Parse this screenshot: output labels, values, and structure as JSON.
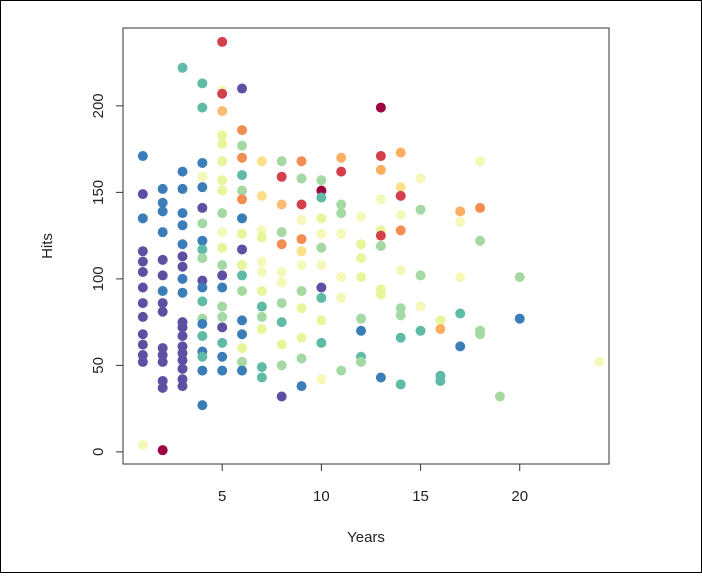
{
  "chart_data": {
    "type": "scatter",
    "title": "",
    "xlabel": "Years",
    "ylabel": "Hits",
    "xlim": [
      0,
      24.5
    ],
    "ylim": [
      -7,
      245
    ],
    "x_ticks": [
      "5",
      "10",
      "15",
      "20"
    ],
    "y_ticks": [
      "0",
      "50",
      "100",
      "150",
      "200"
    ],
    "grid": false,
    "color_scale": "Spectral",
    "points": [
      {
        "x": 1,
        "y": 171,
        "c": "#3b7db8"
      },
      {
        "x": 1,
        "y": 149,
        "c": "#5e4fa2"
      },
      {
        "x": 1,
        "y": 135,
        "c": "#3b7db8"
      },
      {
        "x": 1,
        "y": 116,
        "c": "#5e4fa2"
      },
      {
        "x": 1,
        "y": 110,
        "c": "#5e4fa2"
      },
      {
        "x": 1,
        "y": 104,
        "c": "#5e4fa2"
      },
      {
        "x": 1,
        "y": 95,
        "c": "#5e4fa2"
      },
      {
        "x": 1,
        "y": 86,
        "c": "#5e4fa2"
      },
      {
        "x": 1,
        "y": 78,
        "c": "#5e4fa2"
      },
      {
        "x": 1,
        "y": 68,
        "c": "#5e4fa2"
      },
      {
        "x": 1,
        "y": 62,
        "c": "#5e4fa2"
      },
      {
        "x": 1,
        "y": 56,
        "c": "#5e4fa2"
      },
      {
        "x": 1,
        "y": 52,
        "c": "#5e4fa2"
      },
      {
        "x": 1,
        "y": 4,
        "c": "#f4f8b8"
      },
      {
        "x": 2,
        "y": 152,
        "c": "#3b7db8"
      },
      {
        "x": 2,
        "y": 144,
        "c": "#3b7db8"
      },
      {
        "x": 2,
        "y": 139,
        "c": "#3b7db8"
      },
      {
        "x": 2,
        "y": 127,
        "c": "#3b7db8"
      },
      {
        "x": 2,
        "y": 111,
        "c": "#5e4fa2"
      },
      {
        "x": 2,
        "y": 102,
        "c": "#5e4fa2"
      },
      {
        "x": 2,
        "y": 93,
        "c": "#3b7db8"
      },
      {
        "x": 2,
        "y": 86,
        "c": "#5e4fa2"
      },
      {
        "x": 2,
        "y": 81,
        "c": "#5e4fa2"
      },
      {
        "x": 2,
        "y": 60,
        "c": "#5e4fa2"
      },
      {
        "x": 2,
        "y": 56,
        "c": "#5e4fa2"
      },
      {
        "x": 2,
        "y": 52,
        "c": "#5e4fa2"
      },
      {
        "x": 2,
        "y": 41,
        "c": "#5e4fa2"
      },
      {
        "x": 2,
        "y": 37,
        "c": "#5e4fa2"
      },
      {
        "x": 2,
        "y": 1,
        "c": "#9e0142"
      },
      {
        "x": 3,
        "y": 222,
        "c": "#5fbba5"
      },
      {
        "x": 3,
        "y": 162,
        "c": "#3b7db8"
      },
      {
        "x": 3,
        "y": 152,
        "c": "#3b7db8"
      },
      {
        "x": 3,
        "y": 138,
        "c": "#3b7db8"
      },
      {
        "x": 3,
        "y": 131,
        "c": "#3b7db8"
      },
      {
        "x": 3,
        "y": 120,
        "c": "#3b7db8"
      },
      {
        "x": 3,
        "y": 113,
        "c": "#5e4fa2"
      },
      {
        "x": 3,
        "y": 107,
        "c": "#5e4fa2"
      },
      {
        "x": 3,
        "y": 100,
        "c": "#3b7db8"
      },
      {
        "x": 3,
        "y": 92,
        "c": "#3b7db8"
      },
      {
        "x": 3,
        "y": 75,
        "c": "#5e4fa2"
      },
      {
        "x": 3,
        "y": 72,
        "c": "#5e4fa2"
      },
      {
        "x": 3,
        "y": 67,
        "c": "#5e4fa2"
      },
      {
        "x": 3,
        "y": 61,
        "c": "#5e4fa2"
      },
      {
        "x": 3,
        "y": 57,
        "c": "#5e4fa2"
      },
      {
        "x": 3,
        "y": 53,
        "c": "#5e4fa2"
      },
      {
        "x": 3,
        "y": 48,
        "c": "#5e4fa2"
      },
      {
        "x": 3,
        "y": 42,
        "c": "#5e4fa2"
      },
      {
        "x": 3,
        "y": 38,
        "c": "#5e4fa2"
      },
      {
        "x": 4,
        "y": 213,
        "c": "#5fbba5"
      },
      {
        "x": 4,
        "y": 199,
        "c": "#5fbba5"
      },
      {
        "x": 4,
        "y": 167,
        "c": "#3b7db8"
      },
      {
        "x": 4,
        "y": 159,
        "c": "#f4f8b8"
      },
      {
        "x": 4,
        "y": 153,
        "c": "#3b7db8"
      },
      {
        "x": 4,
        "y": 141,
        "c": "#5e4fa2"
      },
      {
        "x": 4,
        "y": 132,
        "c": "#a5d9a4"
      },
      {
        "x": 4,
        "y": 122,
        "c": "#3b7db8"
      },
      {
        "x": 4,
        "y": 117,
        "c": "#5fbba5"
      },
      {
        "x": 4,
        "y": 112,
        "c": "#a5d9a4"
      },
      {
        "x": 4,
        "y": 99,
        "c": "#5e4fa2"
      },
      {
        "x": 4,
        "y": 95,
        "c": "#3b7db8"
      },
      {
        "x": 4,
        "y": 87,
        "c": "#5fbba5"
      },
      {
        "x": 4,
        "y": 77,
        "c": "#a5d9a4"
      },
      {
        "x": 4,
        "y": 74,
        "c": "#3b7db8"
      },
      {
        "x": 4,
        "y": 67,
        "c": "#5fbba5"
      },
      {
        "x": 4,
        "y": 58,
        "c": "#3b7db8"
      },
      {
        "x": 4,
        "y": 55,
        "c": "#5fbba5"
      },
      {
        "x": 4,
        "y": 47,
        "c": "#3b7db8"
      },
      {
        "x": 4,
        "y": 27,
        "c": "#3b7db8"
      },
      {
        "x": 5,
        "y": 237,
        "c": "#d33f4b"
      },
      {
        "x": 5,
        "y": 209,
        "c": "#f4f8b8"
      },
      {
        "x": 5,
        "y": 207,
        "c": "#d33f4b"
      },
      {
        "x": 5,
        "y": 197,
        "c": "#f9be74"
      },
      {
        "x": 5,
        "y": 183,
        "c": "#e8f59b"
      },
      {
        "x": 5,
        "y": 178,
        "c": "#e8f59b"
      },
      {
        "x": 5,
        "y": 168,
        "c": "#e8f59b"
      },
      {
        "x": 5,
        "y": 157,
        "c": "#e8f59b"
      },
      {
        "x": 5,
        "y": 151,
        "c": "#e8f59b"
      },
      {
        "x": 5,
        "y": 138,
        "c": "#a5d9a4"
      },
      {
        "x": 5,
        "y": 127,
        "c": "#f4f8b8"
      },
      {
        "x": 5,
        "y": 118,
        "c": "#e8f59b"
      },
      {
        "x": 5,
        "y": 108,
        "c": "#a5d9a4"
      },
      {
        "x": 5,
        "y": 102,
        "c": "#5e4fa2"
      },
      {
        "x": 5,
        "y": 95,
        "c": "#3b7db8"
      },
      {
        "x": 5,
        "y": 84,
        "c": "#a5d9a4"
      },
      {
        "x": 5,
        "y": 78,
        "c": "#a5d9a4"
      },
      {
        "x": 5,
        "y": 72,
        "c": "#5e4fa2"
      },
      {
        "x": 5,
        "y": 63,
        "c": "#5fbba5"
      },
      {
        "x": 5,
        "y": 55,
        "c": "#3b7db8"
      },
      {
        "x": 5,
        "y": 47,
        "c": "#3b7db8"
      },
      {
        "x": 6,
        "y": 210,
        "c": "#5e4fa2"
      },
      {
        "x": 6,
        "y": 186,
        "c": "#f58d52"
      },
      {
        "x": 6,
        "y": 177,
        "c": "#a5d9a4"
      },
      {
        "x": 6,
        "y": 170,
        "c": "#f58d52"
      },
      {
        "x": 6,
        "y": 160,
        "c": "#5fbba5"
      },
      {
        "x": 6,
        "y": 151,
        "c": "#a5d9a4"
      },
      {
        "x": 6,
        "y": 146,
        "c": "#f58d52"
      },
      {
        "x": 6,
        "y": 135,
        "c": "#3b7db8"
      },
      {
        "x": 6,
        "y": 126,
        "c": "#e8f59b"
      },
      {
        "x": 6,
        "y": 117,
        "c": "#5e4fa2"
      },
      {
        "x": 6,
        "y": 108,
        "c": "#e8f59b"
      },
      {
        "x": 6,
        "y": 102,
        "c": "#5fbba5"
      },
      {
        "x": 6,
        "y": 93,
        "c": "#a5d9a4"
      },
      {
        "x": 6,
        "y": 76,
        "c": "#3b7db8"
      },
      {
        "x": 6,
        "y": 68,
        "c": "#3b7db8"
      },
      {
        "x": 6,
        "y": 60,
        "c": "#e8f59b"
      },
      {
        "x": 6,
        "y": 52,
        "c": "#a5d9a4"
      },
      {
        "x": 6,
        "y": 47,
        "c": "#3b7db8"
      },
      {
        "x": 7,
        "y": 168,
        "c": "#fee08b"
      },
      {
        "x": 7,
        "y": 148,
        "c": "#fee08b"
      },
      {
        "x": 7,
        "y": 128,
        "c": "#f4f8b8"
      },
      {
        "x": 7,
        "y": 124,
        "c": "#e8f59b"
      },
      {
        "x": 7,
        "y": 110,
        "c": "#f4f8b8"
      },
      {
        "x": 7,
        "y": 104,
        "c": "#f4f8b8"
      },
      {
        "x": 7,
        "y": 93,
        "c": "#e8f59b"
      },
      {
        "x": 7,
        "y": 84,
        "c": "#5fbba5"
      },
      {
        "x": 7,
        "y": 78,
        "c": "#a5d9a4"
      },
      {
        "x": 7,
        "y": 71,
        "c": "#e8f59b"
      },
      {
        "x": 7,
        "y": 49,
        "c": "#5fbba5"
      },
      {
        "x": 7,
        "y": 43,
        "c": "#5fbba5"
      },
      {
        "x": 8,
        "y": 168,
        "c": "#a5d9a4"
      },
      {
        "x": 8,
        "y": 159,
        "c": "#d33f4b"
      },
      {
        "x": 8,
        "y": 143,
        "c": "#f9be74"
      },
      {
        "x": 8,
        "y": 127,
        "c": "#a5d9a4"
      },
      {
        "x": 8,
        "y": 120,
        "c": "#f58d52"
      },
      {
        "x": 8,
        "y": 104,
        "c": "#f4f8b8"
      },
      {
        "x": 8,
        "y": 98,
        "c": "#f4f8b8"
      },
      {
        "x": 8,
        "y": 86,
        "c": "#a5d9a4"
      },
      {
        "x": 8,
        "y": 75,
        "c": "#5fbba5"
      },
      {
        "x": 8,
        "y": 62,
        "c": "#e8f59b"
      },
      {
        "x": 8,
        "y": 50,
        "c": "#a5d9a4"
      },
      {
        "x": 8,
        "y": 32,
        "c": "#5e4fa2"
      },
      {
        "x": 9,
        "y": 168,
        "c": "#f58d52"
      },
      {
        "x": 9,
        "y": 158,
        "c": "#a5d9a4"
      },
      {
        "x": 9,
        "y": 143,
        "c": "#d33f4b"
      },
      {
        "x": 9,
        "y": 134,
        "c": "#f4f8b8"
      },
      {
        "x": 9,
        "y": 123,
        "c": "#f58d52"
      },
      {
        "x": 9,
        "y": 116,
        "c": "#fee08b"
      },
      {
        "x": 9,
        "y": 108,
        "c": "#f4f8b8"
      },
      {
        "x": 9,
        "y": 93,
        "c": "#a5d9a4"
      },
      {
        "x": 9,
        "y": 83,
        "c": "#e8f59b"
      },
      {
        "x": 9,
        "y": 66,
        "c": "#e8f59b"
      },
      {
        "x": 9,
        "y": 54,
        "c": "#a5d9a4"
      },
      {
        "x": 9,
        "y": 38,
        "c": "#3b7db8"
      },
      {
        "x": 10,
        "y": 157,
        "c": "#a5d9a4"
      },
      {
        "x": 10,
        "y": 151,
        "c": "#9e0142"
      },
      {
        "x": 10,
        "y": 147,
        "c": "#5fbba5"
      },
      {
        "x": 10,
        "y": 135,
        "c": "#e8f59b"
      },
      {
        "x": 10,
        "y": 126,
        "c": "#f4f8b8"
      },
      {
        "x": 10,
        "y": 118,
        "c": "#a5d9a4"
      },
      {
        "x": 10,
        "y": 108,
        "c": "#f4f8b8"
      },
      {
        "x": 10,
        "y": 95,
        "c": "#5e4fa2"
      },
      {
        "x": 10,
        "y": 89,
        "c": "#5fbba5"
      },
      {
        "x": 10,
        "y": 76,
        "c": "#e8f59b"
      },
      {
        "x": 10,
        "y": 63,
        "c": "#5fbba5"
      },
      {
        "x": 10,
        "y": 42,
        "c": "#f4f8b8"
      },
      {
        "x": 11,
        "y": 170,
        "c": "#fdae61"
      },
      {
        "x": 11,
        "y": 162,
        "c": "#d33f4b"
      },
      {
        "x": 11,
        "y": 143,
        "c": "#a5d9a4"
      },
      {
        "x": 11,
        "y": 138,
        "c": "#a5d9a4"
      },
      {
        "x": 11,
        "y": 126,
        "c": "#f4f8b8"
      },
      {
        "x": 11,
        "y": 101,
        "c": "#f4f8b8"
      },
      {
        "x": 11,
        "y": 89,
        "c": "#f4f8b8"
      },
      {
        "x": 11,
        "y": 47,
        "c": "#a5d9a4"
      },
      {
        "x": 12,
        "y": 136,
        "c": "#f4f8b8"
      },
      {
        "x": 12,
        "y": 120,
        "c": "#e8f59b"
      },
      {
        "x": 12,
        "y": 112,
        "c": "#e8f59b"
      },
      {
        "x": 12,
        "y": 101,
        "c": "#e8f59b"
      },
      {
        "x": 12,
        "y": 77,
        "c": "#a5d9a4"
      },
      {
        "x": 12,
        "y": 70,
        "c": "#3b7db8"
      },
      {
        "x": 12,
        "y": 55,
        "c": "#5fbba5"
      },
      {
        "x": 12,
        "y": 52,
        "c": "#a5d9a4"
      },
      {
        "x": 13,
        "y": 199,
        "c": "#9e0142"
      },
      {
        "x": 13,
        "y": 171,
        "c": "#d33f4b"
      },
      {
        "x": 13,
        "y": 163,
        "c": "#fdae61"
      },
      {
        "x": 13,
        "y": 146,
        "c": "#f4f8b8"
      },
      {
        "x": 13,
        "y": 128,
        "c": "#e8f59b"
      },
      {
        "x": 13,
        "y": 125,
        "c": "#d33f4b"
      },
      {
        "x": 13,
        "y": 119,
        "c": "#a5d9a4"
      },
      {
        "x": 13,
        "y": 94,
        "c": "#e8f59b"
      },
      {
        "x": 13,
        "y": 91,
        "c": "#e8f59b"
      },
      {
        "x": 13,
        "y": 43,
        "c": "#3b7db8"
      },
      {
        "x": 14,
        "y": 173,
        "c": "#fdae61"
      },
      {
        "x": 14,
        "y": 153,
        "c": "#fee08b"
      },
      {
        "x": 14,
        "y": 148,
        "c": "#d33f4b"
      },
      {
        "x": 14,
        "y": 137,
        "c": "#f4f8b8"
      },
      {
        "x": 14,
        "y": 128,
        "c": "#f58d52"
      },
      {
        "x": 14,
        "y": 105,
        "c": "#f4f8b8"
      },
      {
        "x": 14,
        "y": 83,
        "c": "#a5d9a4"
      },
      {
        "x": 14,
        "y": 79,
        "c": "#a5d9a4"
      },
      {
        "x": 14,
        "y": 66,
        "c": "#5fbba5"
      },
      {
        "x": 14,
        "y": 39,
        "c": "#5fbba5"
      },
      {
        "x": 15,
        "y": 158,
        "c": "#f4f8b8"
      },
      {
        "x": 15,
        "y": 140,
        "c": "#a5d9a4"
      },
      {
        "x": 15,
        "y": 102,
        "c": "#a5d9a4"
      },
      {
        "x": 15,
        "y": 84,
        "c": "#f4f8b8"
      },
      {
        "x": 15,
        "y": 70,
        "c": "#5fbba5"
      },
      {
        "x": 16,
        "y": 76,
        "c": "#e8f59b"
      },
      {
        "x": 16,
        "y": 71,
        "c": "#fdae61"
      },
      {
        "x": 16,
        "y": 44,
        "c": "#5fbba5"
      },
      {
        "x": 16,
        "y": 41,
        "c": "#5fbba5"
      },
      {
        "x": 17,
        "y": 139,
        "c": "#fdae61"
      },
      {
        "x": 17,
        "y": 133,
        "c": "#f4f8b8"
      },
      {
        "x": 17,
        "y": 101,
        "c": "#f4f8b8"
      },
      {
        "x": 17,
        "y": 80,
        "c": "#5fbba5"
      },
      {
        "x": 17,
        "y": 61,
        "c": "#3b7db8"
      },
      {
        "x": 18,
        "y": 168,
        "c": "#f4f8b8"
      },
      {
        "x": 18,
        "y": 141,
        "c": "#f58d52"
      },
      {
        "x": 18,
        "y": 122,
        "c": "#a5d9a4"
      },
      {
        "x": 18,
        "y": 70,
        "c": "#a5d9a4"
      },
      {
        "x": 18,
        "y": 68,
        "c": "#a5d9a4"
      },
      {
        "x": 19,
        "y": 32,
        "c": "#a5d9a4"
      },
      {
        "x": 20,
        "y": 101,
        "c": "#a5d9a4"
      },
      {
        "x": 20,
        "y": 77,
        "c": "#3b7db8"
      },
      {
        "x": 24,
        "y": 52,
        "c": "#f4f8b8"
      }
    ]
  }
}
